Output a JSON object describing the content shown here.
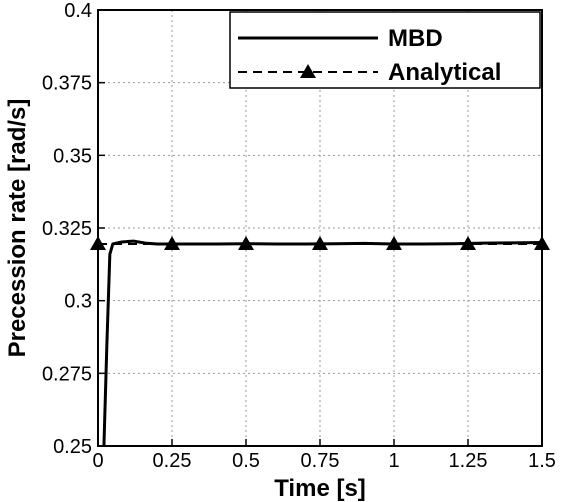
{
  "chart_data": {
    "type": "line",
    "title": "",
    "xlabel": "Time [s]",
    "ylabel": "Precession rate [rad/s]",
    "xlim": [
      0,
      1.5
    ],
    "ylim": [
      0.25,
      0.4
    ],
    "x_ticks": [
      0,
      0.25,
      0.5,
      0.75,
      1,
      1.25,
      1.5
    ],
    "x_tick_labels": [
      "0",
      "0.25",
      "0.5",
      "0.75",
      "1",
      "1.25",
      "1.5"
    ],
    "y_ticks": [
      0.25,
      0.275,
      0.3,
      0.325,
      0.35,
      0.375,
      0.4
    ],
    "y_tick_labels": [
      "0.25",
      "0.275",
      "0.3",
      "0.325",
      "0.35",
      "0.375",
      "0.4"
    ],
    "grid": true,
    "legend_position": "top-right",
    "series": [
      {
        "name": "MBD",
        "style": "solid",
        "color": "#000000",
        "x": [
          0.02,
          0.03,
          0.04,
          0.05,
          0.08,
          0.12,
          0.16,
          0.2,
          0.3,
          0.4,
          0.5,
          0.6,
          0.7,
          0.8,
          0.9,
          1.0,
          1.1,
          1.2,
          1.3,
          1.4,
          1.5
        ],
        "y": [
          0.25,
          0.285,
          0.316,
          0.3195,
          0.3202,
          0.3205,
          0.3198,
          0.3195,
          0.3195,
          0.3195,
          0.3196,
          0.3195,
          0.3195,
          0.3196,
          0.3197,
          0.3195,
          0.3195,
          0.3196,
          0.3198,
          0.3199,
          0.32
        ]
      },
      {
        "name": "Analytical",
        "style": "dashed",
        "marker": "triangle",
        "color": "#000000",
        "x": [
          0,
          0.25,
          0.5,
          0.75,
          1,
          1.25,
          1.5
        ],
        "y": [
          0.3195,
          0.3195,
          0.3195,
          0.3195,
          0.3195,
          0.3195,
          0.3195
        ]
      }
    ]
  }
}
